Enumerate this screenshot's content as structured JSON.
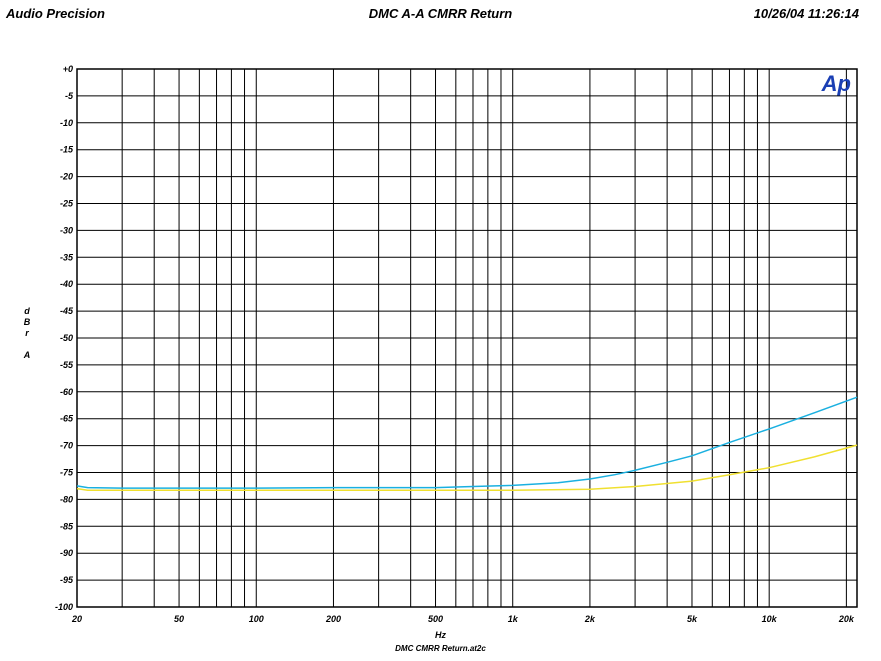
{
  "header": {
    "left": "Audio Precision",
    "center": "DMC A-A CMRR  Return",
    "right": "10/26/04 11:26:14"
  },
  "logo": {
    "text": "Ap",
    "color": "#1a3fb4"
  },
  "footer": "DMC CMRR Return.at2c",
  "chart_data": {
    "type": "line",
    "title": "DMC A-A CMRR  Return",
    "xlabel": "Hz",
    "ylabel": "dBr A",
    "xscale": "log",
    "xlim": [
      20,
      22000
    ],
    "ylim": [
      -100,
      0
    ],
    "grid": true,
    "x_ticks": [
      {
        "v": 20,
        "label": "20"
      },
      {
        "v": 50,
        "label": "50"
      },
      {
        "v": 100,
        "label": "100"
      },
      {
        "v": 200,
        "label": "200"
      },
      {
        "v": 500,
        "label": "500"
      },
      {
        "v": 1000,
        "label": "1k"
      },
      {
        "v": 2000,
        "label": "2k"
      },
      {
        "v": 5000,
        "label": "5k"
      },
      {
        "v": 10000,
        "label": "10k"
      },
      {
        "v": 20000,
        "label": "20k"
      }
    ],
    "y_ticks": [
      {
        "v": 0,
        "label": "+0"
      },
      {
        "v": -5,
        "label": "-5"
      },
      {
        "v": -10,
        "label": "-10"
      },
      {
        "v": -15,
        "label": "-15"
      },
      {
        "v": -20,
        "label": "-20"
      },
      {
        "v": -25,
        "label": "-25"
      },
      {
        "v": -30,
        "label": "-30"
      },
      {
        "v": -35,
        "label": "-35"
      },
      {
        "v": -40,
        "label": "-40"
      },
      {
        "v": -45,
        "label": "-45"
      },
      {
        "v": -50,
        "label": "-50"
      },
      {
        "v": -55,
        "label": "-55"
      },
      {
        "v": -60,
        "label": "-60"
      },
      {
        "v": -65,
        "label": "-65"
      },
      {
        "v": -70,
        "label": "-70"
      },
      {
        "v": -75,
        "label": "-75"
      },
      {
        "v": -80,
        "label": "-80"
      },
      {
        "v": -85,
        "label": "-85"
      },
      {
        "v": -90,
        "label": "-90"
      },
      {
        "v": -95,
        "label": "-95"
      },
      {
        "v": -100,
        "label": "-100"
      }
    ],
    "series": [
      {
        "color": "#1ab0e0",
        "x": [
          20,
          22,
          30,
          50,
          100,
          200,
          500,
          700,
          1000,
          1500,
          2000,
          2500,
          3000,
          4000,
          5000,
          7000,
          10000,
          15000,
          22000
        ],
        "y": [
          -77.5,
          -77.8,
          -77.9,
          -77.9,
          -77.9,
          -77.8,
          -77.8,
          -77.6,
          -77.4,
          -76.9,
          -76.2,
          -75.4,
          -74.6,
          -73.1,
          -71.9,
          -69.4,
          -66.9,
          -63.9,
          -61.0
        ]
      },
      {
        "color": "#f0e030",
        "x": [
          20,
          22,
          30,
          50,
          100,
          200,
          500,
          1000,
          2000,
          3000,
          5000,
          7000,
          10000,
          15000,
          22000
        ],
        "y": [
          -78.0,
          -78.3,
          -78.3,
          -78.3,
          -78.3,
          -78.3,
          -78.3,
          -78.3,
          -78.1,
          -77.6,
          -76.6,
          -75.4,
          -74.1,
          -72.1,
          -69.9
        ]
      }
    ]
  }
}
